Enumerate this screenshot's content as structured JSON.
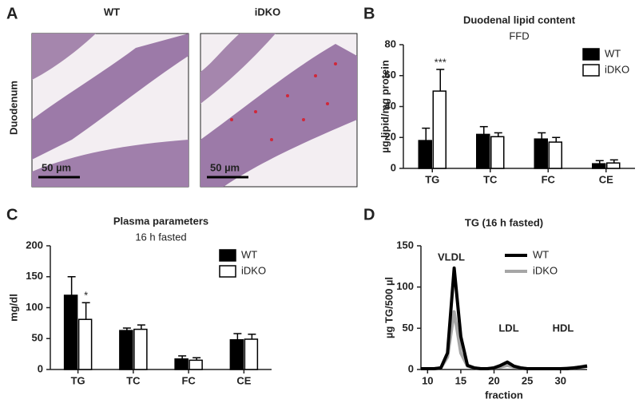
{
  "panel_a": {
    "label": "A",
    "columns": [
      "WT",
      "iDKO"
    ],
    "row_label": "Duodenum",
    "scale_bars": [
      "50 µm",
      "50 µm"
    ]
  },
  "chart_data": [
    {
      "type": "bar",
      "panel_label": "B",
      "title": "Duodenal lipid content",
      "subtitle": "FFD",
      "y_label": "µg lipid/mg protein",
      "categories": [
        "TG",
        "TC",
        "FC",
        "CE"
      ],
      "series": [
        {
          "name": "WT",
          "color": "#000000",
          "values": [
            18,
            22,
            19,
            3
          ],
          "errors": [
            8,
            5,
            4,
            2
          ],
          "annotations": [
            null,
            null,
            null,
            null
          ]
        },
        {
          "name": "iDKO",
          "color": "#ffffff",
          "values": [
            50,
            20.5,
            17,
            3.5
          ],
          "errors": [
            14,
            2.5,
            3,
            2
          ],
          "annotations": [
            "***",
            null,
            null,
            null
          ]
        }
      ],
      "ylim": [
        0,
        80
      ],
      "yticks": [
        0,
        20,
        40,
        60,
        80
      ],
      "legend": "top-right"
    },
    {
      "type": "bar",
      "panel_label": "C",
      "title": "Plasma parameters",
      "subtitle": "16 h fasted",
      "y_label": "mg/dl",
      "categories": [
        "TG",
        "TC",
        "FC",
        "CE"
      ],
      "series": [
        {
          "name": "WT",
          "color": "#000000",
          "values": [
            120,
            63,
            17,
            48
          ],
          "errors": [
            30,
            4,
            5,
            10
          ],
          "annotations": [
            null,
            null,
            null,
            null
          ]
        },
        {
          "name": "iDKO",
          "color": "#ffffff",
          "values": [
            81,
            65,
            15,
            49
          ],
          "errors": [
            27,
            7,
            4,
            8
          ],
          "annotations": [
            "*",
            null,
            null,
            null
          ]
        }
      ],
      "ylim": [
        0,
        200
      ],
      "yticks": [
        0,
        50,
        100,
        150,
        200
      ],
      "legend": "top-right"
    },
    {
      "type": "line",
      "panel_label": "D",
      "title": "TG (16 h fasted)",
      "x_label": "fraction",
      "y_label": "µg TG/500 µl",
      "x": [
        9,
        10,
        11,
        12,
        13,
        14,
        15,
        16,
        17,
        18,
        19,
        20,
        21,
        22,
        23,
        24,
        25,
        26,
        27,
        28,
        29,
        30,
        31,
        32,
        33,
        34
      ],
      "series": [
        {
          "name": "WT",
          "color": "#000000",
          "values": [
            1,
            1,
            1,
            2,
            20,
            123,
            40,
            5,
            2,
            1,
            1,
            2,
            5,
            9,
            4,
            2,
            1,
            1,
            1,
            1,
            1,
            1,
            1,
            2,
            3,
            4
          ]
        },
        {
          "name": "iDKO",
          "color": "#a6a6a6",
          "values": [
            1,
            1,
            1,
            2,
            15,
            70,
            20,
            4,
            2,
            1,
            1,
            2,
            3,
            5,
            3,
            2,
            1,
            1,
            1,
            1,
            1,
            1,
            2,
            2,
            3,
            5
          ]
        }
      ],
      "annotations": [
        "VLDL",
        "LDL",
        "HDL"
      ],
      "xlim": [
        9,
        34
      ],
      "xticks": [
        10,
        15,
        20,
        25,
        30
      ],
      "ylim": [
        0,
        150
      ],
      "yticks": [
        0,
        50,
        100,
        150
      ],
      "legend": "top-right"
    }
  ]
}
